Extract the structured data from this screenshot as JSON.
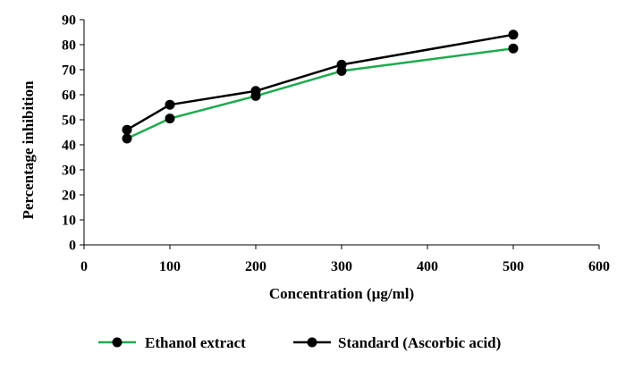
{
  "chart_data": {
    "type": "line",
    "title": "",
    "xlabel": "Concentration (µg/ml)",
    "ylabel": "Percentage inhibition",
    "xlim": [
      0,
      600
    ],
    "ylim": [
      0,
      90
    ],
    "xticks": [
      0,
      100,
      200,
      300,
      400,
      500,
      600
    ],
    "yticks": [
      0,
      10,
      20,
      30,
      40,
      50,
      60,
      70,
      80,
      90
    ],
    "grid": false,
    "legend_position": "bottom",
    "series": [
      {
        "name": "Ethanol extract",
        "color": "#1faa4f",
        "marker_color": "#000000",
        "x": [
          50,
          100,
          200,
          300,
          500
        ],
        "y": [
          42.5,
          50.5,
          59.5,
          69.5,
          78.5
        ]
      },
      {
        "name": "Standard (Ascorbic acid)",
        "color": "#000000",
        "marker_color": "#000000",
        "x": [
          50,
          100,
          200,
          300,
          500
        ],
        "y": [
          46,
          56,
          61.5,
          72,
          84
        ]
      }
    ]
  }
}
